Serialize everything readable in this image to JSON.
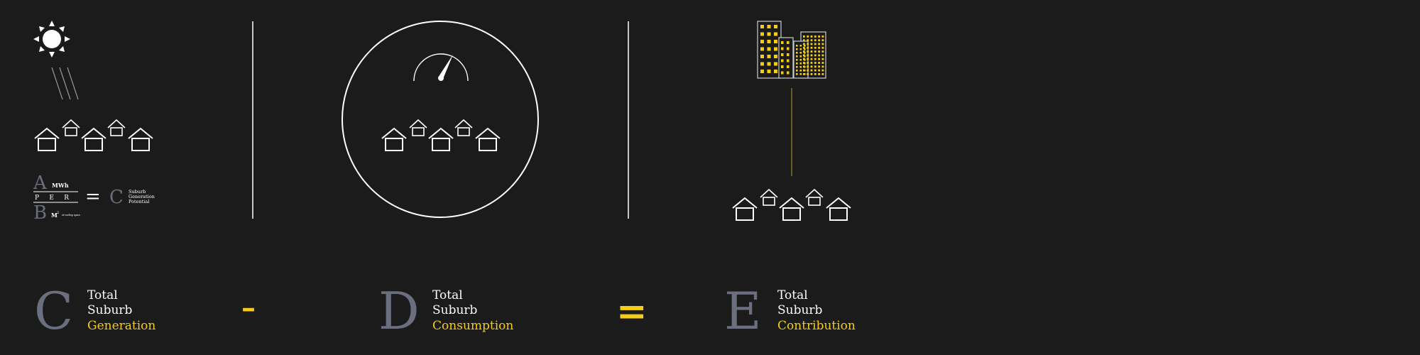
{
  "colors": {
    "background": "#1b1b1b",
    "line": "#ffffff",
    "accent": "#f5cc16",
    "muted": "#6b6e7e",
    "connector": "#8a7a2a"
  },
  "formula": {
    "top_letter": "A",
    "top_unit": "MWh",
    "per_label": "P     E     R",
    "bottom_letter": "B",
    "bottom_unit": "M",
    "bottom_unit_exp": "2",
    "bottom_note": "of rooftop space",
    "equals": "=",
    "result_letter": "C",
    "result_line1": "Suburb",
    "result_line2": "Generation",
    "result_line3": "Potential"
  },
  "equation": {
    "term1": {
      "letter": "C",
      "line1": "Total",
      "line2": "Suburb",
      "line3": "Generation"
    },
    "operator1": "–",
    "term2": {
      "letter": "D",
      "line1": "Total",
      "line2": "Suburb",
      "line3": "Consumption"
    },
    "operator2": "=",
    "term3": {
      "letter": "E",
      "line1": "Total",
      "line2": "Suburb",
      "line3": "Contribution"
    }
  }
}
